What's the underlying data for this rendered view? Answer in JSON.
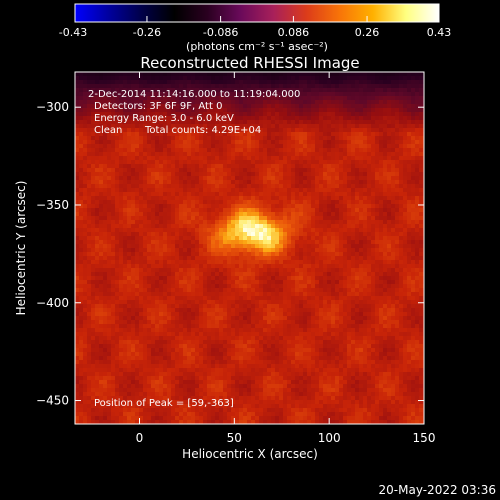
{
  "colorbar": {
    "ticks": [
      "-0.43",
      "-0.26",
      "-0.086",
      "0.086",
      "0.26",
      "0.43"
    ],
    "tick_values": [
      -0.43,
      -0.26,
      -0.086,
      0.086,
      0.26,
      0.43
    ],
    "range": [
      -0.43,
      0.43
    ],
    "colors": [
      "#0000ff",
      "#0000a0",
      "#00004a",
      "#000000",
      "#2a0020",
      "#6a0a5a",
      "#a8205a",
      "#dc3c1a",
      "#f87408",
      "#ffb000",
      "#ffff80",
      "#ffffff"
    ]
  },
  "chart_data": {
    "type": "heatmap",
    "title": "Reconstructed RHESSI Image",
    "xlabel": "Heliocentric X (arcsec)",
    "ylabel": "Heliocentric Y (arcsec)",
    "xlim": [
      -34,
      150
    ],
    "ylim": [
      -462,
      -282
    ],
    "x_ticks": [
      "0",
      "50",
      "100",
      "150"
    ],
    "x_tick_values": [
      0,
      50,
      100,
      150
    ],
    "y_ticks": [
      "-300",
      "-350",
      "-400",
      "-450"
    ],
    "y_tick_values": [
      -300,
      -350,
      -400,
      -450
    ],
    "peak": [
      59,
      -363
    ],
    "annotations": {
      "time_range": "2-Dec-2014 11:14:16.000 to 11:19:04.000",
      "detectors": "Detectors: 3F 6F 9F, Att 0",
      "energy": "Energy Range: 3.0 - 6.0 keV",
      "method": "Clean",
      "counts": "Total counts: 4.29E+04",
      "peak_label": "Position of Peak = [59,-363]"
    },
    "image_description_grid": "heatmap of relative intensity"
  },
  "units_label": "(photons cm⁻² s⁻¹ asec⁻²)",
  "footer_timestamp": "20-May-2022 03:36"
}
